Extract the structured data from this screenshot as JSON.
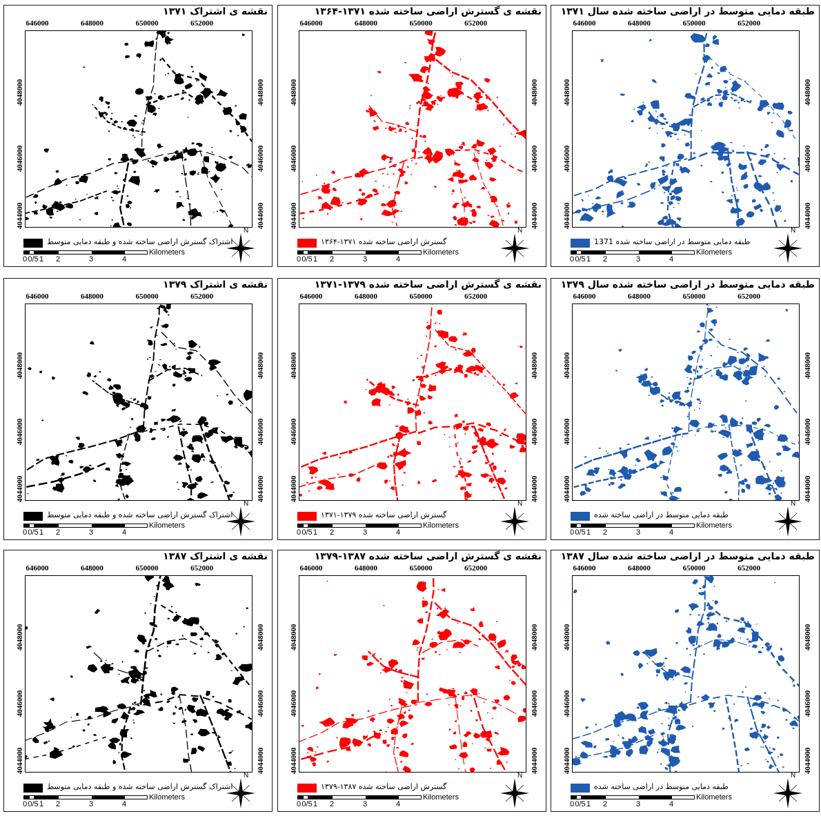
{
  "x_ticks": [
    "646000",
    "648000",
    "650000",
    "652000"
  ],
  "y_ticks": [
    "4048000",
    "4046000",
    "4044000"
  ],
  "scale": {
    "unit": "Kilometers",
    "labels": [
      "0",
      "0/5",
      "1",
      "2",
      "3",
      "4"
    ]
  },
  "north_label": "N",
  "colors": {
    "black": "#000000",
    "red": "#ff0000",
    "blue": "#1f5bb0"
  },
  "panels": [
    {
      "title": "نقشه ی اشتراک ۱۳۷۱",
      "legend": "اشتراک گسترش اراضی ساخته شده و طبقه دمایی متوسط",
      "color_key": "black"
    },
    {
      "title": "نقشه ی گسترش اراضی ساخته شده ۱۳۷۱-۱۳۶۴",
      "legend": "گسترش اراضی ساخته شده ۱۳۷۱-۱۳۶۴",
      "color_key": "red"
    },
    {
      "title": "طبقه دمایی متوسط در اراضی ساخته شده سال ۱۳۷۱",
      "legend": "طبقه دمایی متوسط در اراضی ساخته شده 1371",
      "color_key": "blue"
    },
    {
      "title": "نقشه ی اشتراک ۱۳۷۹",
      "legend": "اشتراک گسترش اراضی ساخته شده و طبقه دمایی متوسط",
      "color_key": "black"
    },
    {
      "title": "نقشه ی گسترش اراضی ساخته شده ۱۳۷۹-۱۳۷۱",
      "legend": "گسترش اراضی ساخته شده ۱۳۷۹-۱۳۷۱",
      "color_key": "red"
    },
    {
      "title": "طبقه دمایی متوسط در اراضی ساخته شده سال ۱۳۷۹",
      "legend": "طبقه دمایی متوسط در اراضی ساخته شده",
      "color_key": "blue"
    },
    {
      "title": "نقشه ی اشتراک ۱۳۸۷",
      "legend": "اشتراک گسترش اراضی ساخته شده و طبقه دمایی متوسط",
      "color_key": "black"
    },
    {
      "title": "نقشه ی گسترش اراضی ساخته شده ۱۳۸۷-۱۳۷۹",
      "legend": "گسترش اراضی ساخته شده ۱۳۸۷-۱۳۷۹",
      "color_key": "red"
    },
    {
      "title": "طبقه دمایی متوسط در اراضی ساخته شده سال ۱۳۸۷",
      "legend": "طبقه دمایی متوسط در اراضی ساخته شده",
      "color_key": "blue"
    }
  ]
}
